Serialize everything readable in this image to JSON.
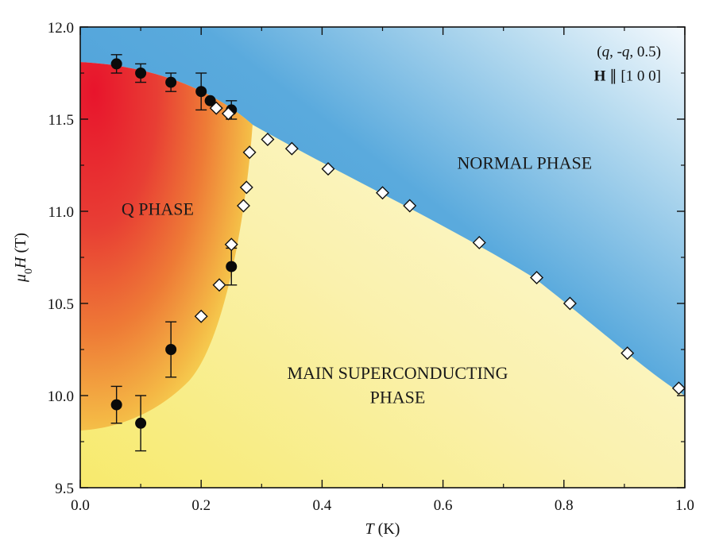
{
  "chart_data": {
    "type": "scatter",
    "xlabel": "T (K)",
    "ylabel": "μ0H (T)",
    "xlim": [
      0.0,
      1.0
    ],
    "ylim": [
      9.5,
      12.0
    ],
    "x_ticks": [
      0.0,
      0.2,
      0.4,
      0.6,
      0.8,
      1.0
    ],
    "x_tick_labels": [
      "0.0",
      "0.2",
      "0.4",
      "0.6",
      "0.8",
      "1.0"
    ],
    "y_ticks": [
      9.5,
      10.0,
      10.5,
      11.0,
      11.5,
      12.0
    ],
    "y_tick_labels": [
      "9.5",
      "10.0",
      "10.5",
      "11.0",
      "11.5",
      "12.0"
    ],
    "annotation_line1": "(q, -q, 0.5)",
    "annotation_line2": "H ∥ [1 0 0]",
    "regions": {
      "normal": "NORMAL PHASE",
      "q": "Q PHASE",
      "main_line1": "MAIN SUPERCONDUCTING",
      "main_line2": "PHASE"
    },
    "series": [
      {
        "marker": "filled-circle",
        "points": [
          {
            "x": 0.06,
            "y": 11.8,
            "err": 0.05
          },
          {
            "x": 0.1,
            "y": 11.75,
            "err": 0.05
          },
          {
            "x": 0.15,
            "y": 11.7,
            "err": 0.05
          },
          {
            "x": 0.2,
            "y": 11.65,
            "err": 0.1
          },
          {
            "x": 0.215,
            "y": 11.6,
            "err": 0.0
          },
          {
            "x": 0.25,
            "y": 11.55,
            "err": 0.05
          },
          {
            "x": 0.25,
            "y": 10.7,
            "err": 0.1
          },
          {
            "x": 0.15,
            "y": 10.25,
            "err": 0.15
          },
          {
            "x": 0.06,
            "y": 9.95,
            "err": 0.1
          },
          {
            "x": 0.1,
            "y": 9.85,
            "err": 0.15
          }
        ]
      },
      {
        "marker": "open-diamond",
        "points": [
          {
            "x": 0.225,
            "y": 11.56
          },
          {
            "x": 0.245,
            "y": 11.53
          },
          {
            "x": 0.28,
            "y": 11.32
          },
          {
            "x": 0.31,
            "y": 11.39
          },
          {
            "x": 0.35,
            "y": 11.34
          },
          {
            "x": 0.41,
            "y": 11.23
          },
          {
            "x": 0.5,
            "y": 11.1
          },
          {
            "x": 0.545,
            "y": 11.03
          },
          {
            "x": 0.66,
            "y": 10.83
          },
          {
            "x": 0.755,
            "y": 10.64
          },
          {
            "x": 0.81,
            "y": 10.5
          },
          {
            "x": 0.905,
            "y": 10.23
          },
          {
            "x": 0.99,
            "y": 10.04
          },
          {
            "x": 0.275,
            "y": 11.13
          },
          {
            "x": 0.27,
            "y": 11.03
          },
          {
            "x": 0.25,
            "y": 10.82
          },
          {
            "x": 0.23,
            "y": 10.6
          },
          {
            "x": 0.2,
            "y": 10.43
          }
        ]
      }
    ],
    "colors": {
      "normal_phase_dark": "#4a9fd8",
      "normal_phase_light": "#f0f7fc",
      "q_phase_red": "#e8192c",
      "q_phase_orange": "#ef7a34",
      "q_phase_yellow": "#f7dd4c",
      "main_phase_yellow": "#f8ef9a",
      "main_phase_cream": "#fdf9dc"
    }
  }
}
